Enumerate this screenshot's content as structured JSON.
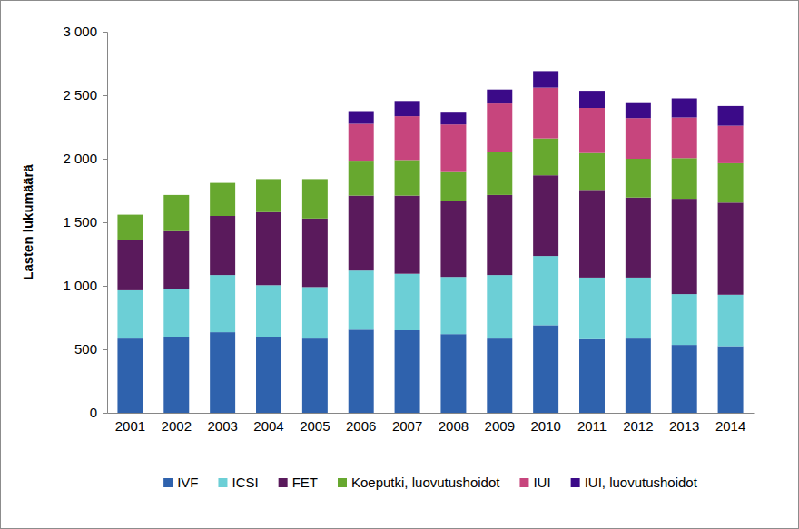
{
  "chart_data": {
    "type": "bar",
    "stacked": true,
    "y_label": "Lasten lukumäärä",
    "categories": [
      "2001",
      "2002",
      "2003",
      "2004",
      "2005",
      "2006",
      "2007",
      "2008",
      "2009",
      "2010",
      "2011",
      "2012",
      "2013",
      "2014"
    ],
    "series": [
      {
        "name": "IVF",
        "color": "#2f62ad",
        "values": [
          585,
          600,
          635,
          600,
          585,
          655,
          650,
          620,
          585,
          690,
          580,
          585,
          535,
          525
        ]
      },
      {
        "name": "ICSI",
        "color": "#6ccfd6",
        "values": [
          380,
          375,
          450,
          405,
          405,
          465,
          445,
          450,
          500,
          545,
          485,
          480,
          400,
          405
        ]
      },
      {
        "name": "FET",
        "color": "#5a1a5c",
        "values": [
          395,
          455,
          465,
          575,
          540,
          590,
          615,
          595,
          630,
          635,
          690,
          630,
          750,
          725
        ]
      },
      {
        "name": "Koeputki, luovutushoidot",
        "color": "#67a82f",
        "values": [
          200,
          285,
          260,
          260,
          310,
          275,
          280,
          230,
          340,
          290,
          290,
          305,
          320,
          310
        ]
      },
      {
        "name": "IUI",
        "color": "#c7457d",
        "values": [
          null,
          null,
          null,
          null,
          null,
          290,
          345,
          375,
          380,
          400,
          355,
          320,
          320,
          295
        ]
      },
      {
        "name": "IUI, luovutushoidot",
        "color": "#3b0a88",
        "values": [
          null,
          null,
          null,
          null,
          null,
          100,
          120,
          100,
          110,
          130,
          135,
          125,
          150,
          155
        ]
      }
    ],
    "ylim": [
      0,
      3000
    ],
    "yticks": [
      0,
      500,
      {
        "value": 1000,
        "label": "1 000"
      },
      {
        "value": 1500,
        "label": "1 500"
      },
      {
        "value": 2000,
        "label": "2 000"
      },
      {
        "value": 2500,
        "label": "2 500"
      },
      {
        "value": 3000,
        "label": "3 000"
      }
    ],
    "grid": false,
    "legend": "bottom"
  }
}
